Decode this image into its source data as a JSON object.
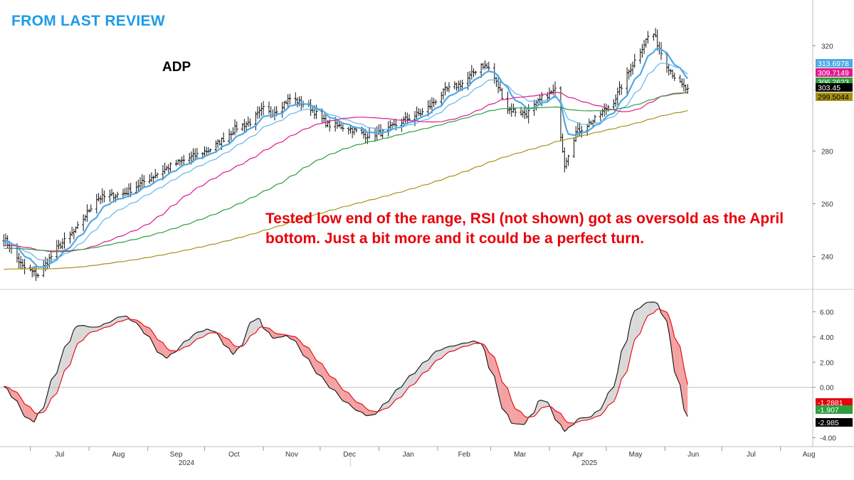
{
  "header": {
    "title": "FROM LAST REVIEW",
    "color": "#1E9BE8"
  },
  "annotation": {
    "text": "Tested low end of the range, RSI (not shown) got as oversold as the April bottom. Just a bit more and it could be a perfect turn.",
    "color": "#E8000B"
  },
  "chart_data": [
    {
      "type": "line",
      "title": "ADP",
      "x_axis": {
        "month_ticks": [
          "Jul",
          "Aug",
          "Sep",
          "Oct",
          "Nov",
          "Dec",
          "Jan",
          "Feb",
          "Mar",
          "Apr",
          "May",
          "Jun",
          "Jul",
          "Aug"
        ],
        "year_labels": [
          "2024",
          "2025"
        ]
      },
      "y_axis": {
        "ticks": [
          240,
          260,
          280,
          320
        ],
        "ylim": [
          228,
          336
        ]
      },
      "price_anchors": {
        "x": [
          "2024-06-17",
          "2024-06-27",
          "2024-07-05",
          "2024-07-15",
          "2024-07-25",
          "2024-08-05",
          "2024-08-20",
          "2024-09-05",
          "2024-09-15",
          "2024-09-25",
          "2024-10-05",
          "2024-10-18",
          "2024-10-25",
          "2024-11-01",
          "2024-11-05",
          "2024-11-15",
          "2024-11-25",
          "2024-12-05",
          "2024-12-15",
          "2024-12-25",
          "2025-01-03",
          "2025-01-15",
          "2025-01-25",
          "2025-02-05",
          "2025-02-15",
          "2025-02-24",
          "2025-03-01",
          "2025-03-10",
          "2025-03-20",
          "2025-03-28",
          "2025-04-04",
          "2025-04-09",
          "2025-04-15",
          "2025-04-25",
          "2025-05-05",
          "2025-05-15",
          "2025-05-25",
          "2025-06-01",
          "2025-06-08",
          "2025-06-13"
        ],
        "close": [
          247,
          236,
          233,
          243,
          250,
          262,
          264,
          271,
          275,
          278,
          281,
          289,
          291,
          296,
          294,
          300,
          297,
          290,
          289,
          286,
          287,
          292,
          295,
          303,
          306,
          313,
          311,
          296,
          294,
          300,
          303,
          275,
          287,
          292,
          299,
          313,
          326,
          314,
          306,
          303
        ]
      },
      "series": [
        {
          "name": "313.6978",
          "color": "#4FA9E5",
          "last": 313.6978
        },
        {
          "name": "309.7149",
          "color": "#E0198F",
          "last": 309.7149
        },
        {
          "name": "306.2623",
          "color": "#2E9E3E",
          "last": 306.2623
        },
        {
          "name": "303.45",
          "color": "#000000",
          "last": 303.45
        },
        {
          "name": "299.5044",
          "color": "#A89217",
          "last": 299.5044
        }
      ],
      "last_labels": [
        "313.6978",
        "309.7149",
        "306.2623",
        "303.45",
        "299.5044"
      ]
    },
    {
      "type": "area",
      "y_axis": {
        "ticks": [
          6.0,
          4.0,
          2.0,
          0.0,
          -4.0
        ],
        "tick_labels": [
          "6.00",
          "4.00",
          "2.00",
          "0.00",
          "-4.00"
        ],
        "ylim": [
          -4.7,
          7.6
        ]
      },
      "macd_anchors": {
        "x": [
          "2024-06-17",
          "2024-06-22",
          "2024-07-01",
          "2024-07-05",
          "2024-07-15",
          "2024-07-25",
          "2024-08-05",
          "2024-08-20",
          "2024-08-30",
          "2024-09-10",
          "2024-09-25",
          "2024-10-05",
          "2024-10-17",
          "2024-10-28",
          "2024-11-05",
          "2024-11-15",
          "2024-11-30",
          "2024-12-15",
          "2024-12-28",
          "2025-01-15",
          "2025-02-01",
          "2025-02-15",
          "2025-02-24",
          "2025-03-10",
          "2025-03-20",
          "2025-03-28",
          "2025-04-03",
          "2025-04-09",
          "2025-04-15",
          "2025-04-25",
          "2025-05-05",
          "2025-05-15",
          "2025-05-25",
          "2025-06-01",
          "2025-06-08",
          "2025-06-13"
        ],
        "value": [
          0.3,
          -0.8,
          -2.9,
          -2.6,
          1.5,
          5.0,
          4.7,
          5.8,
          4.5,
          2.1,
          4.2,
          4.8,
          2.3,
          6.0,
          3.8,
          4.2,
          1.0,
          -1.3,
          -2.5,
          0.5,
          3.0,
          3.5,
          3.8,
          -2.8,
          -3.0,
          -0.5,
          -2.0,
          -3.8,
          -2.5,
          -2.3,
          0.0,
          6.0,
          7.0,
          6.2,
          0.0,
          -2.9
        ]
      },
      "last_labels": [
        "-1.2881",
        "-1.907",
        "-2.985"
      ],
      "last_label_colors": [
        "#E8000B",
        "#2E9E3E",
        "#000000"
      ]
    }
  ]
}
